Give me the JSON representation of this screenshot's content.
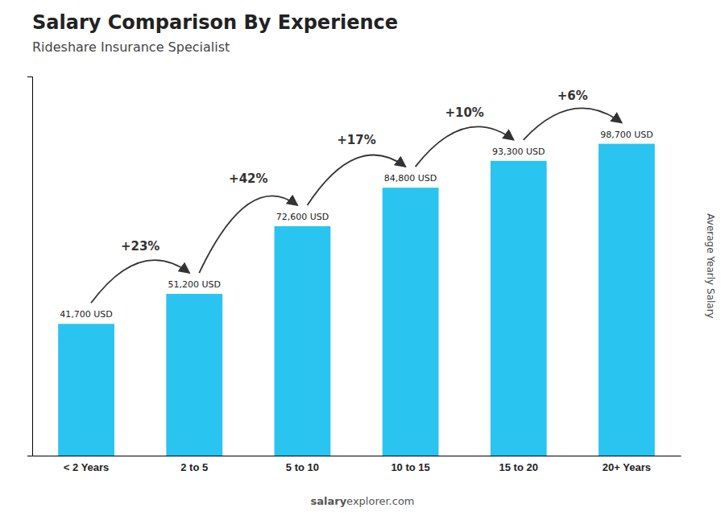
{
  "chart_data": {
    "type": "bar",
    "title": "Salary Comparison By Experience",
    "subtitle": "Rideshare Insurance Specialist",
    "ylabel": "Average Yearly Salary",
    "categories": [
      "< 2 Years",
      "2 to 5",
      "5 to 10",
      "10 to 15",
      "15 to 20",
      "20+ Years"
    ],
    "values": [
      41700,
      51200,
      72600,
      84800,
      93300,
      98700
    ],
    "value_labels": [
      "41,700 USD",
      "51,200 USD",
      "72,600 USD",
      "84,800 USD",
      "93,300 USD",
      "98,700 USD"
    ],
    "data_labels": true,
    "color": "#29c4ef",
    "ylim": [
      0,
      120000
    ],
    "tick_labels": "x",
    "annotations": [
      "+23%",
      "+42%",
      "+17%",
      "+10%",
      "+6%"
    ],
    "footer": [
      "salary",
      "explorer.com"
    ]
  }
}
